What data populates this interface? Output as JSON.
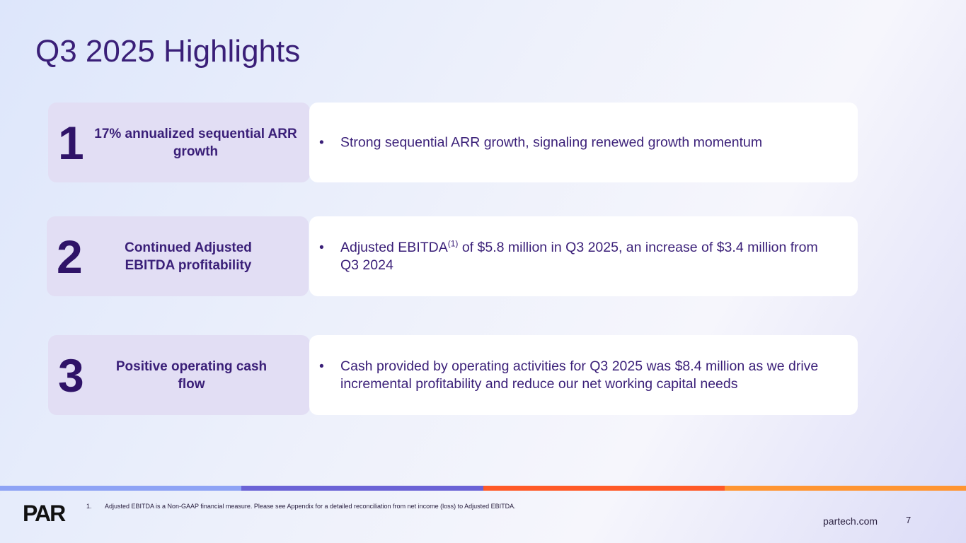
{
  "title": "Q3 2025 Highlights",
  "highlights": [
    {
      "number": "1",
      "label": "17% annualized sequential ARR growth",
      "bullet": "Strong sequential ARR growth, signaling renewed growth momentum"
    },
    {
      "number": "2",
      "label": "Continued Adjusted EBITDA profitability",
      "bullet_pre": "Adjusted EBITDA",
      "bullet_sup": "(1)",
      "bullet_post": " of $5.8 million in Q3 2025, an increase of $3.4 million from Q3 2024"
    },
    {
      "number": "3",
      "label": "Positive operating cash flow",
      "bullet": "Cash provided by operating activities for Q3 2025 was $8.4 million as we drive incremental profitability and reduce our net working capital needs"
    }
  ],
  "bullet_char": "•",
  "stripe_colors": [
    "#8ea3f5",
    "#6b63d6",
    "#ff5a28",
    "#ff9532"
  ],
  "footnote": {
    "number": "1.",
    "text": "Adjusted EBITDA is a Non-GAAP financial measure. Please see Appendix for a detailed reconciliation from net income (loss) to Adjusted EBITDA."
  },
  "logo_text": "PAR",
  "website": "partech.com",
  "page_number": "7"
}
